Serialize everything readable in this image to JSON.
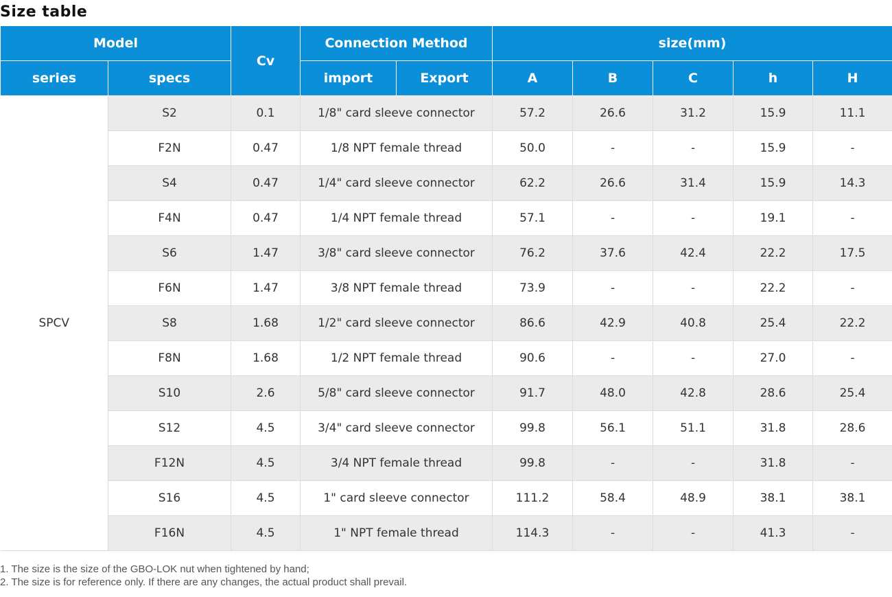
{
  "title": "Size table",
  "header": {
    "model": "Model",
    "cv": "Cv",
    "connection_method": "Connection Method",
    "size": "size(mm)",
    "series": "series",
    "specs": "specs",
    "import": "import",
    "export": "Export",
    "a": "A",
    "b": "B",
    "c": "C",
    "h_small": "h",
    "h_big": "H"
  },
  "series_name": "SPCV",
  "rows": [
    {
      "spec": "S2",
      "cv": "0.1",
      "conn": "1/8\" card sleeve connector",
      "a": "57.2",
      "b": "26.6",
      "c": "31.2",
      "h": "15.9",
      "H": "11.1"
    },
    {
      "spec": "F2N",
      "cv": "0.47",
      "conn": "1/8 NPT female thread",
      "a": "50.0",
      "b": "-",
      "c": "-",
      "h": "15.9",
      "H": "-"
    },
    {
      "spec": "S4",
      "cv": "0.47",
      "conn": "1/4\" card sleeve connector",
      "a": "62.2",
      "b": "26.6",
      "c": "31.4",
      "h": "15.9",
      "H": "14.3"
    },
    {
      "spec": "F4N",
      "cv": "0.47",
      "conn": "1/4 NPT female thread",
      "a": "57.1",
      "b": "-",
      "c": "-",
      "h": "19.1",
      "H": "-"
    },
    {
      "spec": "S6",
      "cv": "1.47",
      "conn": "3/8\" card sleeve connector",
      "a": "76.2",
      "b": "37.6",
      "c": "42.4",
      "h": "22.2",
      "H": "17.5"
    },
    {
      "spec": "F6N",
      "cv": "1.47",
      "conn": "3/8 NPT female thread",
      "a": "73.9",
      "b": "-",
      "c": "-",
      "h": "22.2",
      "H": "-"
    },
    {
      "spec": "S8",
      "cv": "1.68",
      "conn": "1/2\" card sleeve connector",
      "a": "86.6",
      "b": "42.9",
      "c": "40.8",
      "h": "25.4",
      "H": "22.2"
    },
    {
      "spec": "F8N",
      "cv": "1.68",
      "conn": "1/2 NPT female thread",
      "a": "90.6",
      "b": "-",
      "c": "-",
      "h": "27.0",
      "H": "-"
    },
    {
      "spec": "S10",
      "cv": "2.6",
      "conn": "5/8\" card sleeve connector",
      "a": "91.7",
      "b": "48.0",
      "c": "42.8",
      "h": "28.6",
      "H": "25.4"
    },
    {
      "spec": "S12",
      "cv": "4.5",
      "conn": "3/4\" card sleeve connector",
      "a": "99.8",
      "b": "56.1",
      "c": "51.1",
      "h": "31.8",
      "H": "28.6"
    },
    {
      "spec": "F12N",
      "cv": "4.5",
      "conn": "3/4 NPT female thread",
      "a": "99.8",
      "b": "-",
      "c": "-",
      "h": "31.8",
      "H": "-"
    },
    {
      "spec": "S16",
      "cv": "4.5",
      "conn": "1\" card sleeve connector",
      "a": "111.2",
      "b": "58.4",
      "c": "48.9",
      "h": "38.1",
      "H": "38.1"
    },
    {
      "spec": "F16N",
      "cv": "4.5",
      "conn": "1\" NPT female thread",
      "a": "114.3",
      "b": "-",
      "c": "-",
      "h": "41.3",
      "H": "-"
    }
  ],
  "notes": [
    "1. The size is the size of the GBO-LOK nut when tightened by hand;",
    "2. The size is for reference only. If there are any changes, the actual product shall prevail."
  ]
}
